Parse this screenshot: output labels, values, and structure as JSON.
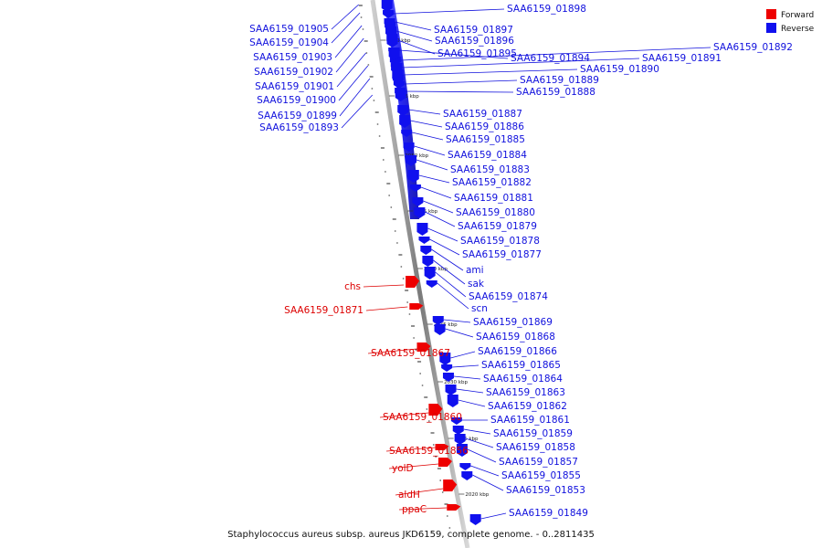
{
  "title": "Staphylococcus aureus subsp. aureus JKD6159, complete genome. - 0..2811435",
  "legend": [
    {
      "label": "Forward",
      "color": "#ee0000"
    },
    {
      "label": "Reverse",
      "color": "#1010ee"
    }
  ],
  "colors": {
    "forward": "#ee0000",
    "reverse": "#1010ee",
    "backbone": "#888888"
  },
  "ticks": [
    "2060 kbp",
    "2055 kbp",
    "2050 kbp",
    "2045 kbp",
    "2040 kbp",
    "2035 kbp",
    "2030 kbp",
    "2025 kbp",
    "2020 kbp"
  ],
  "genes": [
    {
      "name": "SAA6159_01898",
      "strand": "reverse"
    },
    {
      "name": "SAA6159_01897",
      "strand": "reverse"
    },
    {
      "name": "SAA6159_01896",
      "strand": "reverse"
    },
    {
      "name": "SAA6159_01895",
      "strand": "reverse"
    },
    {
      "name": "SAA6159_01894",
      "strand": "reverse"
    },
    {
      "name": "SAA6159_01892",
      "strand": "reverse"
    },
    {
      "name": "SAA6159_01891",
      "strand": "reverse"
    },
    {
      "name": "SAA6159_01890",
      "strand": "reverse"
    },
    {
      "name": "SAA6159_01889",
      "strand": "reverse"
    },
    {
      "name": "SAA6159_01888",
      "strand": "reverse"
    },
    {
      "name": "SAA6159_01887",
      "strand": "reverse"
    },
    {
      "name": "SAA6159_01886",
      "strand": "reverse"
    },
    {
      "name": "SAA6159_01885",
      "strand": "reverse"
    },
    {
      "name": "SAA6159_01884",
      "strand": "reverse"
    },
    {
      "name": "SAA6159_01883",
      "strand": "reverse"
    },
    {
      "name": "SAA6159_01882",
      "strand": "reverse"
    },
    {
      "name": "SAA6159_01881",
      "strand": "reverse"
    },
    {
      "name": "SAA6159_01880",
      "strand": "reverse"
    },
    {
      "name": "SAA6159_01879",
      "strand": "reverse"
    },
    {
      "name": "SAA6159_01878",
      "strand": "reverse"
    },
    {
      "name": "SAA6159_01877",
      "strand": "reverse"
    },
    {
      "name": "ami",
      "strand": "reverse"
    },
    {
      "name": "sak",
      "strand": "reverse"
    },
    {
      "name": "SAA6159_01874",
      "strand": "reverse"
    },
    {
      "name": "scn",
      "strand": "reverse"
    },
    {
      "name": "SAA6159_01869",
      "strand": "reverse"
    },
    {
      "name": "SAA6159_01868",
      "strand": "reverse"
    },
    {
      "name": "SAA6159_01866",
      "strand": "reverse"
    },
    {
      "name": "SAA6159_01865",
      "strand": "reverse"
    },
    {
      "name": "SAA6159_01864",
      "strand": "reverse"
    },
    {
      "name": "SAA6159_01863",
      "strand": "reverse"
    },
    {
      "name": "SAA6159_01862",
      "strand": "reverse"
    },
    {
      "name": "SAA6159_01861",
      "strand": "reverse"
    },
    {
      "name": "SAA6159_01859",
      "strand": "reverse"
    },
    {
      "name": "SAA6159_01858",
      "strand": "reverse"
    },
    {
      "name": "SAA6159_01857",
      "strand": "reverse"
    },
    {
      "name": "SAA6159_01855",
      "strand": "reverse"
    },
    {
      "name": "SAA6159_01853",
      "strand": "reverse"
    },
    {
      "name": "SAA6159_01849",
      "strand": "reverse"
    },
    {
      "name": "SAA6159_01905",
      "strand": "reverse"
    },
    {
      "name": "SAA6159_01904",
      "strand": "reverse"
    },
    {
      "name": "SAA6159_01903",
      "strand": "reverse"
    },
    {
      "name": "SAA6159_01902",
      "strand": "reverse"
    },
    {
      "name": "SAA6159_01901",
      "strand": "reverse"
    },
    {
      "name": "SAA6159_01900",
      "strand": "reverse"
    },
    {
      "name": "SAA6159_01899",
      "strand": "reverse"
    },
    {
      "name": "SAA6159_01893",
      "strand": "reverse"
    },
    {
      "name": "chs",
      "strand": "forward"
    },
    {
      "name": "SAA6159_01871",
      "strand": "forward"
    },
    {
      "name": "SAA6159_01867",
      "strand": "forward"
    },
    {
      "name": "SAA6159_01860",
      "strand": "forward"
    },
    {
      "name": "SAA6159_01856",
      "strand": "forward"
    },
    {
      "name": "yolD",
      "strand": "forward"
    },
    {
      "name": "aldH",
      "strand": "forward"
    },
    {
      "name": "ppaC",
      "strand": "forward"
    }
  ]
}
